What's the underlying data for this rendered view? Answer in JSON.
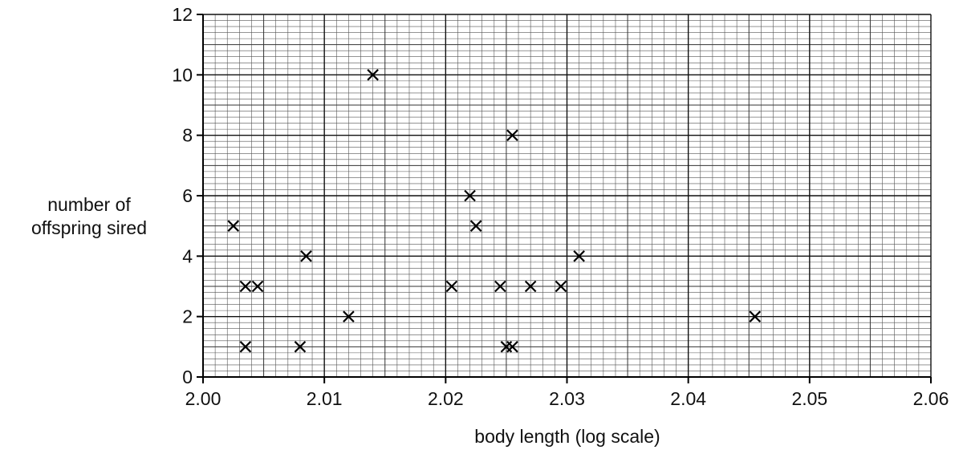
{
  "chart_data": {
    "type": "scatter",
    "title": "",
    "xlabel": "body length (log scale)",
    "ylabel_lines": [
      "number of",
      "offspring sired"
    ],
    "xlim": [
      2.0,
      2.06
    ],
    "ylim": [
      0,
      12
    ],
    "x_ticks": [
      "2.00",
      "2.01",
      "2.02",
      "2.03",
      "2.04",
      "2.05",
      "2.06"
    ],
    "y_ticks": [
      "0",
      "2",
      "4",
      "6",
      "8",
      "10",
      "12"
    ],
    "grid": true,
    "marker": "x",
    "points": [
      {
        "x": 2.0025,
        "y": 5
      },
      {
        "x": 2.0035,
        "y": 3
      },
      {
        "x": 2.0045,
        "y": 3
      },
      {
        "x": 2.0035,
        "y": 1
      },
      {
        "x": 2.008,
        "y": 1
      },
      {
        "x": 2.0085,
        "y": 4
      },
      {
        "x": 2.012,
        "y": 2
      },
      {
        "x": 2.014,
        "y": 10
      },
      {
        "x": 2.0205,
        "y": 3
      },
      {
        "x": 2.022,
        "y": 6
      },
      {
        "x": 2.0225,
        "y": 5
      },
      {
        "x": 2.0245,
        "y": 3
      },
      {
        "x": 2.025,
        "y": 1
      },
      {
        "x": 2.0255,
        "y": 1
      },
      {
        "x": 2.0255,
        "y": 8
      },
      {
        "x": 2.027,
        "y": 3
      },
      {
        "x": 2.0295,
        "y": 3
      },
      {
        "x": 2.031,
        "y": 4
      },
      {
        "x": 2.0455,
        "y": 2
      }
    ]
  }
}
